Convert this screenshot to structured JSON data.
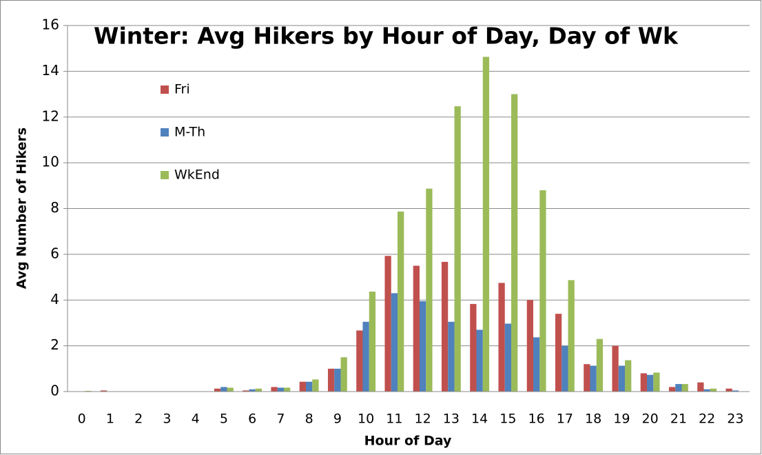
{
  "chart_data": {
    "type": "bar",
    "title": "Winter: Avg Hikers by Hour of Day, Day of Wk",
    "x_label": "Hour of Day",
    "y_label": "Avg Number of Hikers",
    "categories": [
      "0",
      "1",
      "2",
      "3",
      "4",
      "5",
      "6",
      "7",
      "8",
      "9",
      "10",
      "11",
      "12",
      "13",
      "14",
      "15",
      "16",
      "17",
      "18",
      "19",
      "20",
      "21",
      "22",
      "23"
    ],
    "series": [
      {
        "name": "Fri",
        "color": "#c0504d",
        "values": [
          0,
          0.05,
          0,
          0,
          0,
          0.13,
          0.05,
          0.2,
          0.43,
          1.0,
          2.67,
          5.93,
          5.5,
          5.67,
          3.83,
          4.75,
          4.0,
          3.4,
          1.2,
          2.0,
          0.8,
          0.2,
          0.4,
          0.13
        ]
      },
      {
        "name": "M-Th",
        "color": "#4f81bd",
        "values": [
          0,
          0,
          0,
          0,
          0,
          0.2,
          0.1,
          0.17,
          0.43,
          1.0,
          3.05,
          4.3,
          3.95,
          3.05,
          2.7,
          2.97,
          2.37,
          2.0,
          1.13,
          1.13,
          0.73,
          0.33,
          0.1,
          0.05
        ]
      },
      {
        "name": "WkEnd",
        "color": "#9bbb59",
        "values": [
          0.03,
          0,
          0,
          0,
          0,
          0.17,
          0.13,
          0.17,
          0.53,
          1.5,
          4.37,
          7.87,
          8.87,
          12.47,
          14.63,
          13.0,
          8.8,
          4.87,
          2.3,
          1.37,
          0.83,
          0.33,
          0.13,
          0
        ]
      }
    ],
    "ylim": [
      0,
      16
    ],
    "yticks": [
      0,
      2,
      4,
      6,
      8,
      10,
      12,
      14,
      16
    ],
    "grid": true,
    "legend": "top-left"
  }
}
